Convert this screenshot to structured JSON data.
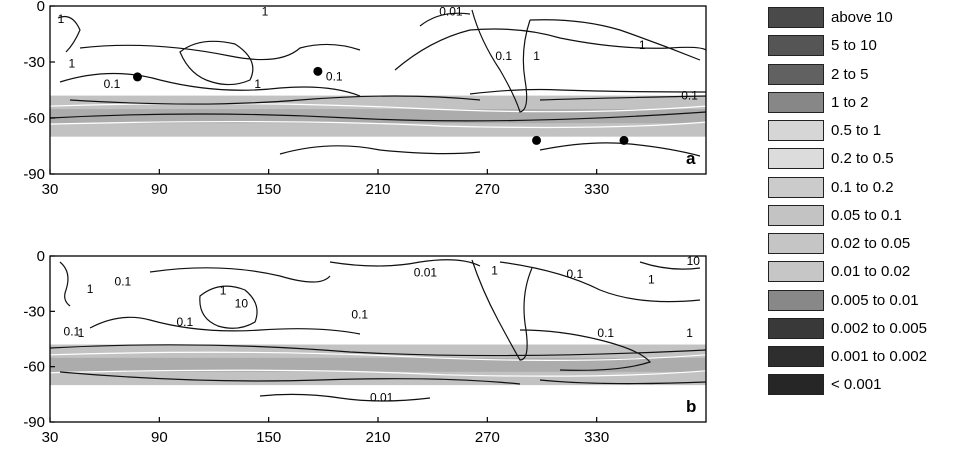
{
  "chart_data": {
    "type": "heatmap",
    "panels": [
      {
        "label": "a",
        "x_ticks": [
          "30",
          "90",
          "150",
          "210",
          "270",
          "330"
        ],
        "y_ticks": [
          "0",
          "-30",
          "-60",
          "-90"
        ],
        "xlim": [
          30,
          390
        ],
        "ylim": [
          -90,
          0
        ],
        "shaded_band_lat": [
          -48,
          -70
        ],
        "contour_labels": [
          {
            "text": "1",
            "lon": 36,
            "lat": -9
          },
          {
            "text": "1",
            "lon": 148,
            "lat": -5
          },
          {
            "text": "0.01",
            "lon": 250,
            "lat": -5
          },
          {
            "text": "1",
            "lon": 42,
            "lat": -33
          },
          {
            "text": "0.1",
            "lon": 64,
            "lat": -44
          },
          {
            "text": "1",
            "lon": 144,
            "lat": -44
          },
          {
            "text": "0.1",
            "lon": 186,
            "lat": -40
          },
          {
            "text": "0.1",
            "lon": 279,
            "lat": -29
          },
          {
            "text": "1",
            "lon": 297,
            "lat": -29
          },
          {
            "text": "1",
            "lon": 355,
            "lat": -23
          },
          {
            "text": "0.1",
            "lon": 381,
            "lat": -50
          }
        ],
        "markers": [
          {
            "lon": 78,
            "lat": -38
          },
          {
            "lon": 177,
            "lat": -35
          },
          {
            "lon": 297,
            "lat": -72
          },
          {
            "lon": 345,
            "lat": -72
          }
        ]
      },
      {
        "label": "b",
        "x_ticks": [
          "30",
          "90",
          "150",
          "210",
          "270",
          "330"
        ],
        "y_ticks": [
          "0",
          "-30",
          "-60",
          "-90"
        ],
        "xlim": [
          30,
          390
        ],
        "ylim": [
          -90,
          0
        ],
        "shaded_band_lat": [
          -48,
          -70
        ],
        "contour_labels": [
          {
            "text": "1",
            "lon": 52,
            "lat": -20
          },
          {
            "text": "0.1",
            "lon": 70,
            "lat": -16
          },
          {
            "text": "1",
            "lon": 125,
            "lat": -21
          },
          {
            "text": "0.01",
            "lon": 236,
            "lat": -11
          },
          {
            "text": "1",
            "lon": 274,
            "lat": -10
          },
          {
            "text": "0.1",
            "lon": 318,
            "lat": -12
          },
          {
            "text": "10",
            "lon": 383,
            "lat": -5
          },
          {
            "text": "10",
            "lon": 135,
            "lat": -28
          },
          {
            "text": "0.1",
            "lon": 104,
            "lat": -38
          },
          {
            "text": "0.1",
            "lon": 200,
            "lat": -34
          },
          {
            "text": "1",
            "lon": 360,
            "lat": -15
          },
          {
            "text": "0.1",
            "lon": 42,
            "lat": -43
          },
          {
            "text": "1",
            "lon": 47,
            "lat": -44
          },
          {
            "text": "0.1",
            "lon": 335,
            "lat": -44
          },
          {
            "text": "1",
            "lon": 381,
            "lat": -44
          },
          {
            "text": "0.01",
            "lon": 212,
            "lat": -79
          }
        ],
        "markers": []
      }
    ],
    "legend": [
      {
        "label": "above 10",
        "color": "#4a4a4a"
      },
      {
        "label": "5 to 10",
        "color": "#555555"
      },
      {
        "label": "2 to 5",
        "color": "#616161"
      },
      {
        "label": "1 to 2",
        "color": "#878787"
      },
      {
        "label": "0.5 to 1",
        "color": "#d6d6d6"
      },
      {
        "label": "0.2 to 0.5",
        "color": "#dcdcdc"
      },
      {
        "label": "0.1 to 0.2",
        "color": "#cbcbcb"
      },
      {
        "label": "0.05 to 0.1",
        "color": "#c3c3c3"
      },
      {
        "label": "0.02 to 0.05",
        "color": "#c5c5c5"
      },
      {
        "label": "0.01 to 0.02",
        "color": "#c6c6c6"
      },
      {
        "label": "0.005 to 0.01",
        "color": "#888888"
      },
      {
        "label": "0.002 to 0.005",
        "color": "#393939"
      },
      {
        "label": "0.001 to 0.002",
        "color": "#2e2e2e"
      },
      {
        "label": "< 0.001",
        "color": "#262626"
      }
    ],
    "legend_position": "right",
    "grid": false,
    "band_color": "#c2c2c2",
    "band_dark_color": "#9a9a9a"
  }
}
